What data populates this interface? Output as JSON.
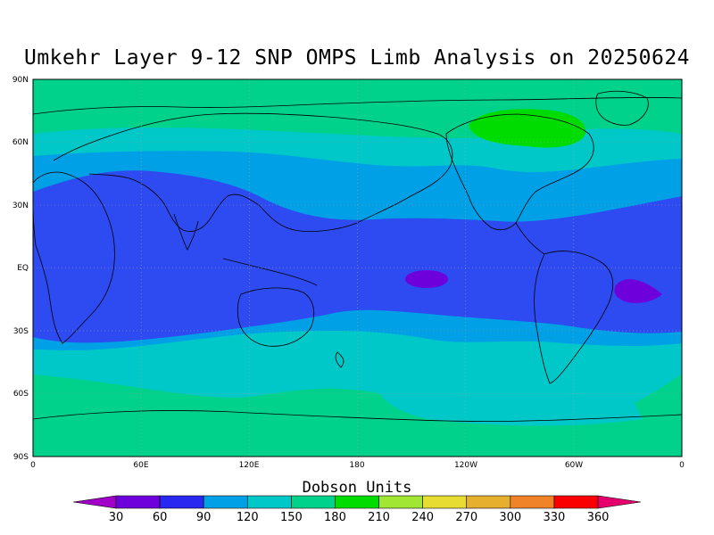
{
  "title": "Umkehr Layer 9-12 SNP OMPS Limb Analysis on 20250624",
  "lat_labels": [
    "90N",
    "60N",
    "30N",
    "EQ",
    "30S",
    "60S",
    "90S"
  ],
  "lon_labels": [
    "0",
    "60E",
    "120E",
    "180",
    "120W",
    "60W",
    "0"
  ],
  "colorbar": {
    "title": "Dobson Units",
    "ticks": [
      "30",
      "60",
      "90",
      "120",
      "150",
      "180",
      "210",
      "240",
      "270",
      "300",
      "330",
      "360"
    ],
    "colors": [
      "#a000c8",
      "#6e00dc",
      "#2828f0",
      "#00a0e6",
      "#00c8c8",
      "#00d28c",
      "#00dc00",
      "#a0e632",
      "#e6dc32",
      "#e6af2d",
      "#f08228",
      "#fa0000",
      "#e6006e"
    ]
  },
  "map_colors": {
    "blue": "#2d4bf0",
    "light_blue": "#00a0e6",
    "cyan": "#00c8c8",
    "green": "#00d28c",
    "bright_green": "#00dc00",
    "purple": "#6e00dc"
  }
}
